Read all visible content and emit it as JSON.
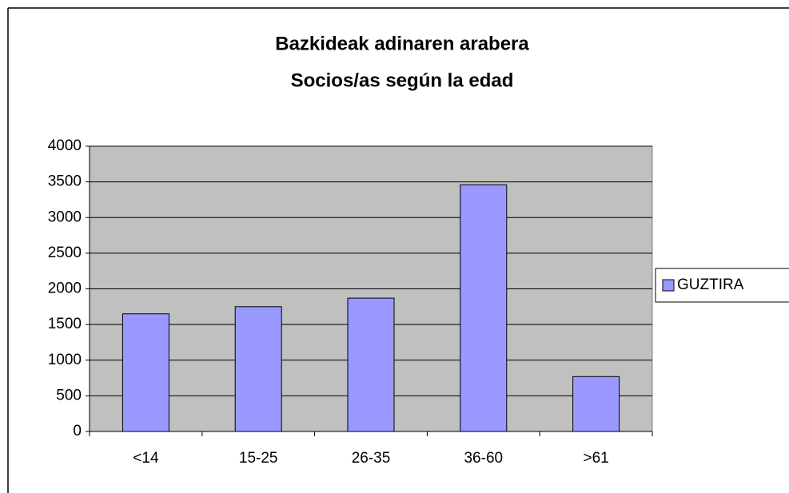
{
  "chart_data": {
    "type": "bar",
    "title": "Bazkideak adinaren arabera",
    "subtitle": "Socios/as según la edad",
    "categories": [
      "<14",
      "15-25",
      "26-35",
      "36-60",
      ">61"
    ],
    "series": [
      {
        "name": "GUZTIRA",
        "color": "#9999ff",
        "values": [
          1650,
          1750,
          1870,
          3460,
          770
        ]
      }
    ],
    "ylim": [
      0,
      4000
    ],
    "yticks": [
      0,
      500,
      1000,
      1500,
      2000,
      2500,
      3000,
      3500,
      4000
    ],
    "grid": true,
    "legend": "right"
  }
}
